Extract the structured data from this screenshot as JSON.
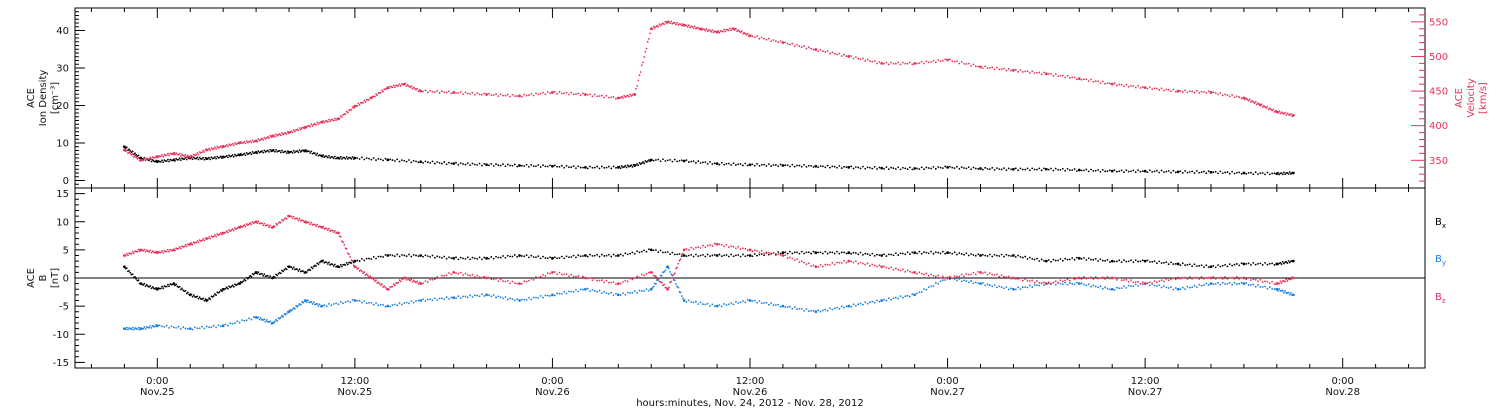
{
  "chart_data": [
    {
      "type": "scatter",
      "panel": "top",
      "ylabel_lines": [
        "ACE",
        "Ion Density",
        "[cm⁻³]"
      ],
      "ylabel_right_lines": [
        "ACE",
        "Velocity",
        "[km/s]"
      ],
      "ylim": [
        -2,
        46
      ],
      "ylim_right": [
        310,
        570
      ],
      "yticks": [
        0,
        10,
        20,
        30,
        40
      ],
      "yticks_right": [
        350,
        400,
        450,
        500,
        550
      ],
      "series": [
        {
          "axis": "left",
          "color": "#000000",
          "points": [
            [
              -2,
              9
            ],
            [
              -1,
              6
            ],
            [
              0,
              5
            ],
            [
              1,
              5.5
            ],
            [
              2,
              6
            ],
            [
              3,
              5.8
            ],
            [
              4,
              6.3
            ],
            [
              5,
              6.8
            ],
            [
              6,
              7.5
            ],
            [
              7,
              8
            ],
            [
              8,
              7.5
            ],
            [
              9,
              8
            ],
            [
              10,
              6.5
            ],
            [
              11,
              6
            ],
            [
              12,
              6
            ],
            [
              14,
              5.5
            ],
            [
              16,
              5
            ],
            [
              18,
              4.5
            ],
            [
              20,
              4.2
            ],
            [
              22,
              4
            ],
            [
              24,
              3.8
            ],
            [
              26,
              3.5
            ],
            [
              28,
              3.5
            ],
            [
              29,
              4
            ],
            [
              30,
              5.5
            ],
            [
              32,
              5.2
            ],
            [
              34,
              4.5
            ],
            [
              36,
              4.2
            ],
            [
              38,
              4
            ],
            [
              40,
              3.8
            ],
            [
              42,
              3.5
            ],
            [
              44,
              3.3
            ],
            [
              46,
              3.2
            ],
            [
              48,
              3.5
            ],
            [
              50,
              3.2
            ],
            [
              52,
              3
            ],
            [
              54,
              3
            ],
            [
              56,
              2.8
            ],
            [
              58,
              2.5
            ],
            [
              60,
              2.5
            ],
            [
              62,
              2.3
            ],
            [
              64,
              2.2
            ],
            [
              66,
              2
            ],
            [
              68,
              1.8
            ],
            [
              69,
              2
            ]
          ]
        },
        {
          "axis": "right",
          "color": "#e8325a",
          "points": [
            [
              -2,
              365
            ],
            [
              -1,
              350
            ],
            [
              0,
              355
            ],
            [
              1,
              360
            ],
            [
              2,
              355
            ],
            [
              3,
              365
            ],
            [
              4,
              370
            ],
            [
              5,
              375
            ],
            [
              6,
              378
            ],
            [
              7,
              385
            ],
            [
              8,
              390
            ],
            [
              9,
              398
            ],
            [
              10,
              405
            ],
            [
              11,
              410
            ],
            [
              12,
              428
            ],
            [
              13,
              440
            ],
            [
              14,
              455
            ],
            [
              15,
              460
            ],
            [
              16,
              450
            ],
            [
              18,
              448
            ],
            [
              20,
              445
            ],
            [
              22,
              443
            ],
            [
              24,
              448
            ],
            [
              26,
              445
            ],
            [
              28,
              440
            ],
            [
              29,
              445
            ],
            [
              30,
              540
            ],
            [
              31,
              550
            ],
            [
              32,
              545
            ],
            [
              33,
              540
            ],
            [
              34,
              535
            ],
            [
              35,
              540
            ],
            [
              36,
              530
            ],
            [
              38,
              520
            ],
            [
              40,
              510
            ],
            [
              42,
              500
            ],
            [
              44,
              490
            ],
            [
              46,
              490
            ],
            [
              48,
              495
            ],
            [
              50,
              485
            ],
            [
              52,
              480
            ],
            [
              54,
              475
            ],
            [
              56,
              468
            ],
            [
              58,
              460
            ],
            [
              60,
              455
            ],
            [
              62,
              450
            ],
            [
              64,
              448
            ],
            [
              66,
              440
            ],
            [
              67,
              430
            ],
            [
              68,
              420
            ],
            [
              69,
              415
            ]
          ]
        }
      ]
    },
    {
      "type": "scatter",
      "panel": "bottom",
      "ylabel_lines": [
        "ACE",
        "B",
        "[nT]"
      ],
      "ylim": [
        -16,
        16
      ],
      "yticks": [
        -15,
        -10,
        -5,
        0,
        5,
        10,
        15
      ],
      "legend": [
        {
          "label": "B",
          "sub": "x",
          "color": "#000000"
        },
        {
          "label": "B",
          "sub": "y",
          "color": "#1a7ee0"
        },
        {
          "label": "B",
          "sub": "z",
          "color": "#e8325a"
        }
      ],
      "series": [
        {
          "name": "Bx",
          "color": "#000000",
          "points": [
            [
              -2,
              2
            ],
            [
              -1,
              -1
            ],
            [
              0,
              -2
            ],
            [
              1,
              -1
            ],
            [
              2,
              -3
            ],
            [
              3,
              -4
            ],
            [
              4,
              -2
            ],
            [
              5,
              -1
            ],
            [
              6,
              1
            ],
            [
              7,
              0
            ],
            [
              8,
              2
            ],
            [
              9,
              1
            ],
            [
              10,
              3
            ],
            [
              11,
              2
            ],
            [
              12,
              3
            ],
            [
              14,
              4
            ],
            [
              16,
              4
            ],
            [
              18,
              3.5
            ],
            [
              20,
              3.5
            ],
            [
              22,
              4
            ],
            [
              24,
              3.5
            ],
            [
              26,
              4
            ],
            [
              28,
              4
            ],
            [
              30,
              5
            ],
            [
              32,
              4
            ],
            [
              34,
              4
            ],
            [
              36,
              4
            ],
            [
              38,
              4.5
            ],
            [
              40,
              4.5
            ],
            [
              42,
              4.5
            ],
            [
              44,
              4
            ],
            [
              46,
              4.5
            ],
            [
              48,
              4.5
            ],
            [
              50,
              4
            ],
            [
              52,
              4
            ],
            [
              54,
              3
            ],
            [
              56,
              3.5
            ],
            [
              58,
              3
            ],
            [
              60,
              3
            ],
            [
              62,
              2.5
            ],
            [
              64,
              2
            ],
            [
              66,
              2.5
            ],
            [
              68,
              2.5
            ],
            [
              69,
              3
            ]
          ]
        },
        {
          "name": "By",
          "color": "#1a7ee0",
          "points": [
            [
              -2,
              -9
            ],
            [
              -1,
              -9
            ],
            [
              0,
              -8.5
            ],
            [
              2,
              -9
            ],
            [
              4,
              -8.5
            ],
            [
              6,
              -7
            ],
            [
              7,
              -8
            ],
            [
              8,
              -6
            ],
            [
              9,
              -4
            ],
            [
              10,
              -5
            ],
            [
              12,
              -4
            ],
            [
              14,
              -5
            ],
            [
              16,
              -4
            ],
            [
              18,
              -3.5
            ],
            [
              20,
              -3
            ],
            [
              22,
              -4
            ],
            [
              24,
              -3
            ],
            [
              26,
              -2
            ],
            [
              28,
              -3
            ],
            [
              30,
              -2
            ],
            [
              31,
              2
            ],
            [
              32,
              -4
            ],
            [
              34,
              -5
            ],
            [
              36,
              -4
            ],
            [
              38,
              -5
            ],
            [
              40,
              -6
            ],
            [
              42,
              -5
            ],
            [
              44,
              -4
            ],
            [
              46,
              -3
            ],
            [
              48,
              0
            ],
            [
              50,
              -1
            ],
            [
              52,
              -2
            ],
            [
              54,
              -1
            ],
            [
              56,
              -1
            ],
            [
              58,
              -2
            ],
            [
              60,
              -1
            ],
            [
              62,
              -2
            ],
            [
              64,
              -1
            ],
            [
              66,
              -1
            ],
            [
              68,
              -2
            ],
            [
              69,
              -3
            ]
          ]
        },
        {
          "name": "Bz",
          "color": "#e8325a",
          "points": [
            [
              -2,
              4
            ],
            [
              -1,
              5
            ],
            [
              0,
              4.5
            ],
            [
              1,
              5
            ],
            [
              2,
              6
            ],
            [
              3,
              7
            ],
            [
              4,
              8
            ],
            [
              5,
              9
            ],
            [
              6,
              10
            ],
            [
              7,
              9
            ],
            [
              8,
              11
            ],
            [
              9,
              10
            ],
            [
              10,
              9
            ],
            [
              11,
              8
            ],
            [
              12,
              2
            ],
            [
              13,
              0
            ],
            [
              14,
              -2
            ],
            [
              15,
              0
            ],
            [
              16,
              -1
            ],
            [
              18,
              1
            ],
            [
              20,
              0
            ],
            [
              22,
              -1
            ],
            [
              24,
              1
            ],
            [
              26,
              0
            ],
            [
              28,
              -1
            ],
            [
              30,
              1
            ],
            [
              31,
              -2
            ],
            [
              32,
              5
            ],
            [
              34,
              6
            ],
            [
              36,
              5
            ],
            [
              38,
              4
            ],
            [
              40,
              2
            ],
            [
              42,
              3
            ],
            [
              44,
              2
            ],
            [
              46,
              1
            ],
            [
              48,
              0
            ],
            [
              50,
              1
            ],
            [
              52,
              0
            ],
            [
              54,
              -1
            ],
            [
              56,
              0
            ],
            [
              58,
              0
            ],
            [
              60,
              -1
            ],
            [
              62,
              0
            ],
            [
              64,
              0
            ],
            [
              66,
              0
            ],
            [
              68,
              -1
            ],
            [
              69,
              0
            ]
          ]
        }
      ]
    }
  ],
  "x_axis": {
    "xlim": [
      -5,
      77
    ],
    "ticks": [
      {
        "h": 0,
        "time": "0:00",
        "date": "Nov.25"
      },
      {
        "h": 12,
        "time": "12:00",
        "date": "Nov.25"
      },
      {
        "h": 24,
        "time": "0:00",
        "date": "Nov.26"
      },
      {
        "h": 36,
        "time": "12:00",
        "date": "Nov.26"
      },
      {
        "h": 48,
        "time": "0:00",
        "date": "Nov.27"
      },
      {
        "h": 60,
        "time": "12:00",
        "date": "Nov.27"
      },
      {
        "h": 72,
        "time": "0:00",
        "date": "Nov.28"
      }
    ],
    "xlabel": "hours:minutes, Nov. 24, 2012 - Nov. 28, 2012"
  }
}
